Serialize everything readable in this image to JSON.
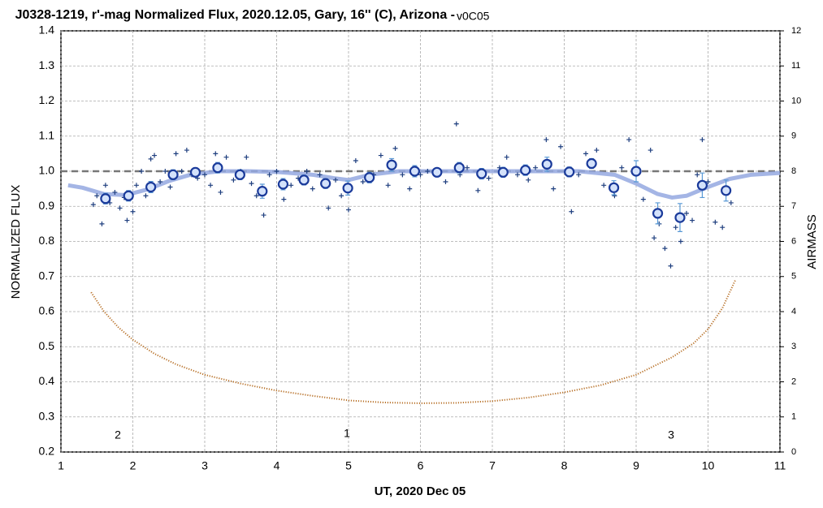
{
  "chart_data": {
    "type": "scatter",
    "title": "J0328-1219, r'-mag Normalized Flux, 2020.12.05, Gary, 16'' (C), Arizona - ",
    "subtitle": "v0C05",
    "x_label": "UT, 2020 Dec 05",
    "y_label": "NORMALIZED FLUX",
    "y2_label": "AIRMASS",
    "xlim": [
      1,
      11
    ],
    "xticks": [
      1,
      2,
      3,
      4,
      5,
      6,
      7,
      8,
      9,
      10,
      11
    ],
    "ylim": [
      0.2,
      1.4
    ],
    "yticks": [
      0.2,
      0.3,
      0.4,
      0.5,
      0.6,
      0.7,
      0.8,
      0.9,
      {
        "value": 1,
        "label": "1.0"
      },
      1.1,
      1.2,
      1.3,
      1.4
    ],
    "y2lim": [
      0,
      12
    ],
    "y2ticks": [
      0,
      1,
      2,
      3,
      4,
      5,
      6,
      7,
      8,
      9,
      10,
      11,
      12
    ],
    "grid": true,
    "hline": 1,
    "annotations": [
      "2",
      "1",
      "3"
    ],
    "series": [
      {
        "marker": "cross",
        "color": "#1f3f7f",
        "x": [
          1.45,
          1.5,
          1.57,
          1.62,
          1.68,
          1.75,
          1.82,
          1.88,
          1.92,
          2.0,
          2.05,
          2.12,
          2.18,
          2.25,
          2.3,
          2.38,
          2.45,
          2.52,
          2.6,
          2.68,
          2.75,
          2.82,
          2.9,
          3.0,
          3.08,
          3.15,
          3.22,
          3.3,
          3.4,
          3.5,
          3.58,
          3.65,
          3.72,
          3.82,
          3.9,
          4.0,
          4.1,
          4.2,
          4.3,
          4.42,
          4.5,
          4.6,
          4.72,
          4.82,
          4.9,
          5.0,
          5.1,
          5.2,
          5.35,
          5.45,
          5.55,
          5.65,
          5.75,
          5.85,
          6.0,
          6.1,
          6.2,
          6.35,
          6.5,
          6.55,
          6.65,
          6.8,
          6.95,
          7.1,
          7.2,
          7.35,
          7.5,
          7.6,
          7.75,
          7.85,
          7.95,
          8.1,
          8.2,
          8.3,
          8.45,
          8.55,
          8.7,
          8.8,
          8.9,
          9.0,
          9.1,
          9.2,
          9.25,
          9.32,
          9.4,
          9.48,
          9.55,
          9.62,
          9.7,
          9.78,
          9.85,
          9.92,
          10.0,
          10.1,
          10.2,
          10.32
        ],
        "values": [
          0.905,
          0.93,
          0.85,
          0.96,
          0.91,
          0.94,
          0.895,
          0.925,
          0.86,
          0.885,
          0.96,
          1.0,
          0.93,
          1.035,
          1.045,
          0.97,
          1.0,
          0.955,
          1.05,
          1.0,
          1.06,
          0.99,
          0.98,
          0.99,
          0.96,
          1.05,
          0.94,
          1.04,
          0.975,
          1.0,
          1.04,
          0.965,
          0.93,
          0.875,
          0.99,
          1.0,
          0.92,
          0.96,
          0.98,
          1.0,
          0.95,
          0.99,
          0.895,
          0.975,
          0.93,
          0.89,
          1.03,
          0.97,
          0.99,
          1.045,
          0.96,
          1.065,
          0.99,
          0.95,
          0.99,
          1.0,
          1.0,
          0.97,
          1.135,
          0.99,
          1.01,
          0.945,
          0.98,
          1.01,
          1.04,
          0.99,
          0.975,
          1.01,
          1.09,
          0.95,
          1.07,
          0.885,
          0.99,
          1.05,
          1.06,
          0.96,
          0.93,
          1.01,
          1.09,
          0.99,
          0.92,
          1.06,
          0.81,
          0.85,
          0.78,
          0.73,
          0.84,
          0.8,
          0.88,
          0.86,
          0.99,
          1.09,
          0.97,
          0.855,
          0.84,
          0.91
        ]
      },
      {
        "marker": "circle",
        "color": "#1a3a9a",
        "error_color": "#5a9ad6",
        "x": [
          1.62,
          1.94,
          2.25,
          2.56,
          2.87,
          3.18,
          3.49,
          3.8,
          4.09,
          4.38,
          4.68,
          4.99,
          5.29,
          5.6,
          5.92,
          6.23,
          6.54,
          6.85,
          7.15,
          7.46,
          7.76,
          8.07,
          8.38,
          8.69,
          9.0,
          9.3,
          9.61,
          9.92,
          10.25
        ],
        "values": [
          0.922,
          0.93,
          0.955,
          0.99,
          0.997,
          1.01,
          0.99,
          0.943,
          0.963,
          0.975,
          0.965,
          0.952,
          0.982,
          1.018,
          1.0,
          0.997,
          1.01,
          0.993,
          0.997,
          1.003,
          1.02,
          0.998,
          1.022,
          0.953,
          1.0,
          0.88,
          0.868,
          0.96,
          0.945
        ],
        "errors": [
          0.015,
          0.015,
          0.016,
          0.014,
          0.013,
          0.015,
          0.014,
          0.02,
          0.016,
          0.014,
          0.014,
          0.02,
          0.015,
          0.018,
          0.016,
          0.012,
          0.015,
          0.015,
          0.014,
          0.015,
          0.02,
          0.014,
          0.014,
          0.02,
          0.03,
          0.03,
          0.04,
          0.035,
          0.03
        ]
      },
      {
        "marker": "none",
        "color": "#94a8e0",
        "x": [
          1.1,
          1.3,
          1.6,
          1.9,
          2.2,
          2.5,
          2.8,
          3.2,
          3.6,
          4.0,
          4.5,
          4.8,
          5.0,
          5.3,
          5.7,
          6.5,
          7.5,
          8.2,
          8.7,
          9.0,
          9.3,
          9.5,
          9.7,
          10.0,
          10.3,
          10.6,
          11
        ],
        "values": [
          0.96,
          0.953,
          0.935,
          0.932,
          0.948,
          0.972,
          0.99,
          1.0,
          1.0,
          0.998,
          0.99,
          0.98,
          0.975,
          0.99,
          1.0,
          1.0,
          1.0,
          1.0,
          0.99,
          0.965,
          0.935,
          0.925,
          0.93,
          0.955,
          0.978,
          0.99,
          0.995
        ]
      },
      {
        "marker": "dots",
        "color": "#b8722a",
        "axis": "y2",
        "x": [
          1.42,
          1.6,
          1.8,
          2.0,
          2.3,
          2.6,
          3.0,
          3.5,
          4.0,
          4.5,
          5.0,
          5.5,
          6.0,
          6.5,
          7.0,
          7.5,
          8.0,
          8.5,
          9.0,
          9.5,
          9.8,
          10.0,
          10.2,
          10.38
        ],
        "values": [
          4.55,
          4.0,
          3.55,
          3.2,
          2.8,
          2.5,
          2.2,
          1.95,
          1.75,
          1.6,
          1.47,
          1.41,
          1.39,
          1.4,
          1.45,
          1.55,
          1.7,
          1.9,
          2.2,
          2.7,
          3.1,
          3.5,
          4.1,
          4.9
        ]
      }
    ]
  }
}
